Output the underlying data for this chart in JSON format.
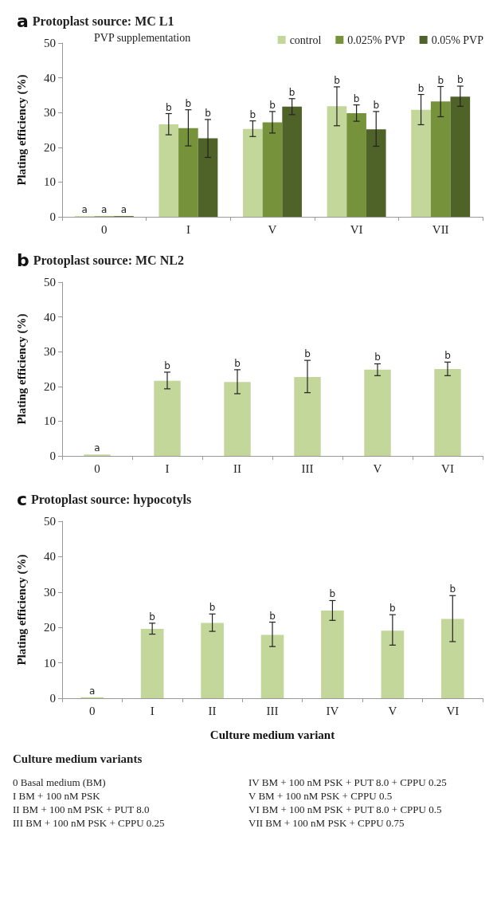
{
  "chart_data": [
    {
      "type": "bar",
      "title": "a Protoplast source: MC L1",
      "ylabel": "Plating efficiency (%)",
      "legend_title": "PVP supplementation",
      "legend": "top right",
      "grid": false,
      "categories": [
        "0",
        "I",
        "V",
        "VI",
        "VII"
      ],
      "ylim": [
        0,
        50
      ],
      "yticks": [
        0,
        10,
        20,
        30,
        40,
        50
      ],
      "series": [
        {
          "name": "control",
          "color": "#c4d79b",
          "values": [
            0.2,
            26.6,
            25.3,
            31.8,
            30.8
          ],
          "errors": [
            null,
            [
              23.6,
              29.7
            ],
            [
              23.1,
              27.6
            ],
            [
              26.2,
              37.4
            ],
            [
              26.5,
              35.2
            ]
          ],
          "value_labels": [
            "a",
            "b",
            "b",
            "b",
            "b"
          ]
        },
        {
          "name": "0.025% PVP",
          "color": "#76933c",
          "values": [
            0.2,
            25.5,
            27.2,
            29.8,
            33.2
          ],
          "errors": [
            null,
            [
              20.4,
              30.8
            ],
            [
              24.1,
              30.3
            ],
            [
              27.5,
              32.2
            ],
            [
              28.8,
              37.5
            ]
          ],
          "value_labels": [
            "a",
            "b",
            "b",
            "b",
            "b"
          ]
        },
        {
          "name": "0.05% PVP",
          "color": "#4f6228",
          "values": [
            0.2,
            22.6,
            31.7,
            25.2,
            34.6
          ],
          "errors": [
            null,
            [
              17.1,
              28.0
            ],
            [
              29.4,
              34.0
            ],
            [
              20.3,
              30.3
            ],
            [
              31.8,
              37.6
            ]
          ],
          "value_labels": [
            "a",
            "b",
            "b",
            "b",
            "b"
          ]
        }
      ]
    },
    {
      "type": "bar",
      "title": "b Protoplast source: MC NL2",
      "ylabel": "Plating efficiency (%)",
      "grid": false,
      "categories": [
        "0",
        "I",
        "II",
        "III",
        "V",
        "VI"
      ],
      "ylim": [
        0,
        50
      ],
      "yticks": [
        0,
        10,
        20,
        30,
        40,
        50
      ],
      "color": "#c4d79b",
      "values": [
        0.4,
        21.6,
        21.3,
        22.7,
        24.8,
        25.0
      ],
      "errors": [
        null,
        [
          19.3,
          24.1
        ],
        [
          17.9,
          24.8
        ],
        [
          18.2,
          27.5
        ],
        [
          23.1,
          26.5
        ],
        [
          23.1,
          27.0
        ]
      ],
      "value_labels": [
        "a",
        "b",
        "b",
        "b",
        "b",
        "b"
      ]
    },
    {
      "type": "bar",
      "title": "c Protoplast source: hypocotyls",
      "ylabel": "Plating efficiency (%)",
      "xlabel": "Culture medium variant",
      "grid": false,
      "categories": [
        "0",
        "I",
        "II",
        "III",
        "IV",
        "V",
        "VI"
      ],
      "ylim": [
        0,
        50
      ],
      "yticks": [
        0,
        10,
        20,
        30,
        40,
        50
      ],
      "color": "#c4d79b",
      "values": [
        0.3,
        19.6,
        21.3,
        17.9,
        24.8,
        19.1,
        22.4
      ],
      "errors": [
        null,
        [
          18.1,
          21.2
        ],
        [
          18.9,
          23.8
        ],
        [
          14.6,
          21.5
        ],
        [
          22.0,
          27.6
        ],
        [
          15.0,
          23.6
        ],
        [
          16.0,
          29.0
        ]
      ],
      "value_labels": [
        "a",
        "b",
        "b",
        "b",
        "b",
        "b",
        "b"
      ]
    },
    {
      "type": "other",
      "title": "Culture medium variants",
      "annotations": [
        "0 Basal medium (BM)",
        "I BM + 100 nM PSK",
        "II BM + 100 nM PSK + PUT 8.0",
        "III BM + 100 nM PSK + CPPU 0.25",
        "IV BM + 100 nM PSK + PUT 8.0 + CPPU 0.25",
        "V BM + 100 nM PSK + CPPU 0.5",
        "VI BM + 100 nM PSK + PUT 8.0 + CPPU 0.5",
        "VII BM + 100 nM PSK + CPPU 0.75"
      ]
    }
  ]
}
